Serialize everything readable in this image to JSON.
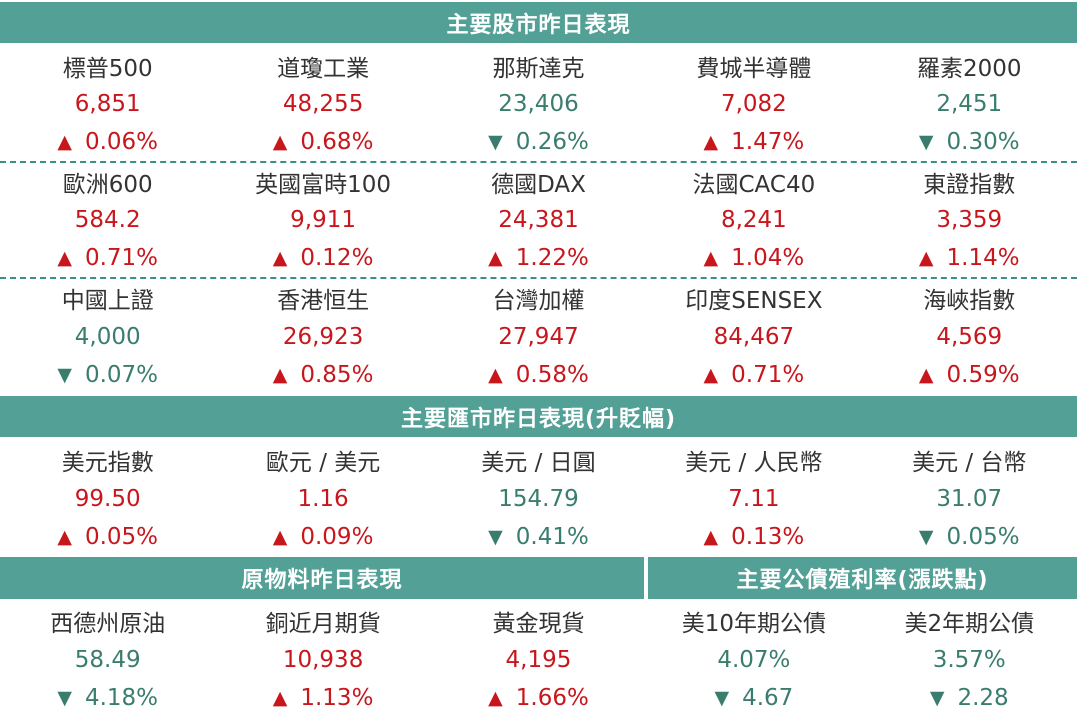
{
  "stocks": {
    "title": "主要股市昨日表現",
    "rows": [
      [
        {
          "name": "標普500",
          "value": "6,851",
          "arrow": "▲",
          "change": "0.06%",
          "dir": "up"
        },
        {
          "name": "道瓊工業",
          "value": "48,255",
          "arrow": "▲",
          "change": "0.68%",
          "dir": "up"
        },
        {
          "name": "那斯達克",
          "value": "23,406",
          "arrow": "▼",
          "change": "0.26%",
          "dir": "down"
        },
        {
          "name": "費城半導體",
          "value": "7,082",
          "arrow": "▲",
          "change": "1.47%",
          "dir": "up"
        },
        {
          "name": "羅素2000",
          "value": "2,451",
          "arrow": "▼",
          "change": "0.30%",
          "dir": "down"
        }
      ],
      [
        {
          "name": "歐洲600",
          "value": "584.2",
          "arrow": "▲",
          "change": "0.71%",
          "dir": "up"
        },
        {
          "name": "英國富時100",
          "value": "9,911",
          "arrow": "▲",
          "change": "0.12%",
          "dir": "up"
        },
        {
          "name": "德國DAX",
          "value": "24,381",
          "arrow": "▲",
          "change": "1.22%",
          "dir": "up"
        },
        {
          "name": "法國CAC40",
          "value": "8,241",
          "arrow": "▲",
          "change": "1.04%",
          "dir": "up"
        },
        {
          "name": "東證指數",
          "value": "3,359",
          "arrow": "▲",
          "change": "1.14%",
          "dir": "up"
        }
      ],
      [
        {
          "name": "中國上證",
          "value": "4,000",
          "arrow": "▼",
          "change": "0.07%",
          "dir": "down"
        },
        {
          "name": "香港恒生",
          "value": "26,923",
          "arrow": "▲",
          "change": "0.85%",
          "dir": "up"
        },
        {
          "name": "台灣加權",
          "value": "27,947",
          "arrow": "▲",
          "change": "0.58%",
          "dir": "up"
        },
        {
          "name": "印度SENSEX",
          "value": "84,467",
          "arrow": "▲",
          "change": "0.71%",
          "dir": "up"
        },
        {
          "name": "海峽指數",
          "value": "4,569",
          "arrow": "▲",
          "change": "0.59%",
          "dir": "up"
        }
      ]
    ]
  },
  "fx": {
    "title": "主要匯市昨日表現(升貶幅)",
    "items": [
      {
        "name": "美元指數",
        "value": "99.50",
        "arrow": "▲",
        "change": "0.05%",
        "dir": "up"
      },
      {
        "name": "歐元 / 美元",
        "value": "1.16",
        "arrow": "▲",
        "change": "0.09%",
        "dir": "up"
      },
      {
        "name": "美元 / 日圓",
        "value": "154.79",
        "arrow": "▼",
        "change": "0.41%",
        "dir": "down"
      },
      {
        "name": "美元 / 人民幣",
        "value": "7.11",
        "arrow": "▲",
        "change": "0.13%",
        "dir": "up"
      },
      {
        "name": "美元 / 台幣",
        "value": "31.07",
        "arrow": "▼",
        "change": "0.05%",
        "dir": "down"
      }
    ]
  },
  "commodities": {
    "title": "原物料昨日表現",
    "items": [
      {
        "name": "西德州原油",
        "value": "58.49",
        "arrow": "▼",
        "change": "4.18%",
        "dir": "down"
      },
      {
        "name": "銅近月期貨",
        "value": "10,938",
        "arrow": "▲",
        "change": "1.13%",
        "dir": "up"
      },
      {
        "name": "黃金現貨",
        "value": "4,195",
        "arrow": "▲",
        "change": "1.66%",
        "dir": "up"
      }
    ]
  },
  "bonds": {
    "title": "主要公債殖利率(漲跌點)",
    "items": [
      {
        "name": "美10年期公債",
        "value": "4.07%",
        "arrow": "▼",
        "change": "4.67",
        "dir": "down"
      },
      {
        "name": "美2年期公債",
        "value": "3.57%",
        "arrow": "▼",
        "change": "2.28",
        "dir": "down"
      }
    ]
  },
  "colors": {
    "header": "#53a196",
    "up": "#c8161d",
    "down": "#3a7d6f"
  }
}
